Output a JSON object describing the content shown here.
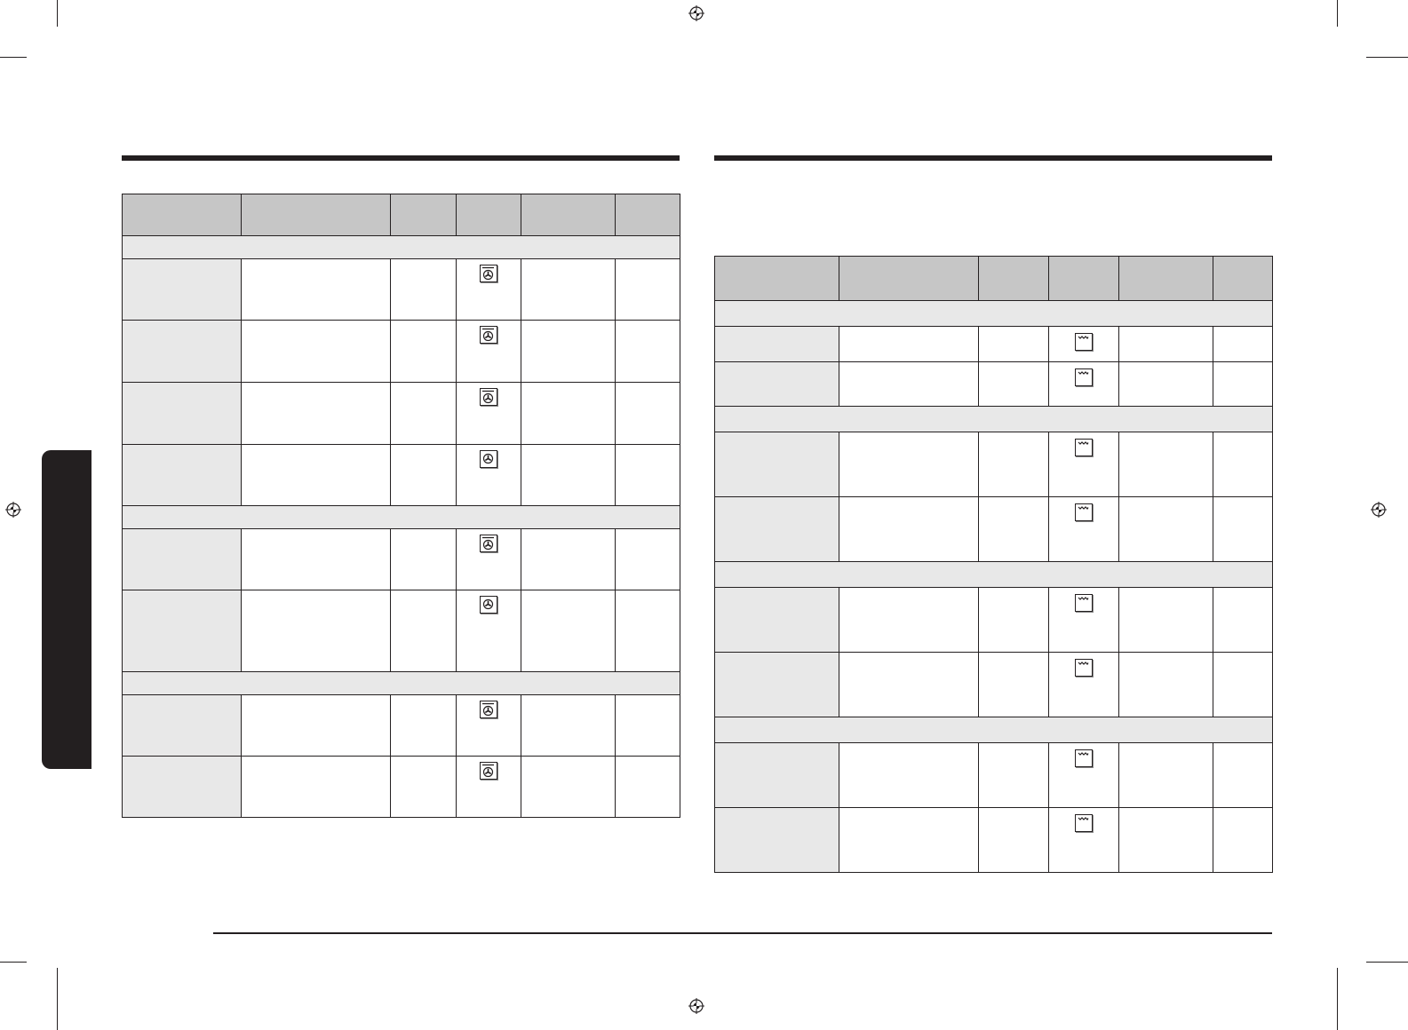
{
  "colors": {
    "ink": "#231f20",
    "header_fill": "#c6c6c6",
    "section_fill": "#e8e8e8"
  },
  "left_table": {
    "rows": [
      {
        "type": "section"
      },
      {
        "type": "row",
        "icon": "fan-top-heat-icon"
      },
      {
        "type": "row",
        "icon": "fan-top-heat-icon"
      },
      {
        "type": "row",
        "icon": "fan-top-heat-icon"
      },
      {
        "type": "row",
        "icon": "fan-icon"
      },
      {
        "type": "section"
      },
      {
        "type": "row",
        "icon": "fan-top-heat-icon"
      },
      {
        "type": "row",
        "icon": "fan-icon"
      },
      {
        "type": "section"
      },
      {
        "type": "row",
        "icon": "fan-top-heat-icon"
      },
      {
        "type": "row",
        "icon": "fan-top-heat-icon"
      }
    ]
  },
  "right_table": {
    "rows": [
      {
        "type": "section"
      },
      {
        "type": "row",
        "icon": "top-heat-icon"
      },
      {
        "type": "row",
        "icon": "top-heat-icon"
      },
      {
        "type": "section"
      },
      {
        "type": "row",
        "icon": "top-heat-icon"
      },
      {
        "type": "row",
        "icon": "top-heat-icon"
      },
      {
        "type": "section"
      },
      {
        "type": "row",
        "icon": "top-heat-icon"
      },
      {
        "type": "row",
        "icon": "top-heat-icon"
      },
      {
        "type": "section"
      },
      {
        "type": "row",
        "icon": "top-heat-icon"
      },
      {
        "type": "row",
        "icon": "top-heat-icon"
      }
    ]
  }
}
